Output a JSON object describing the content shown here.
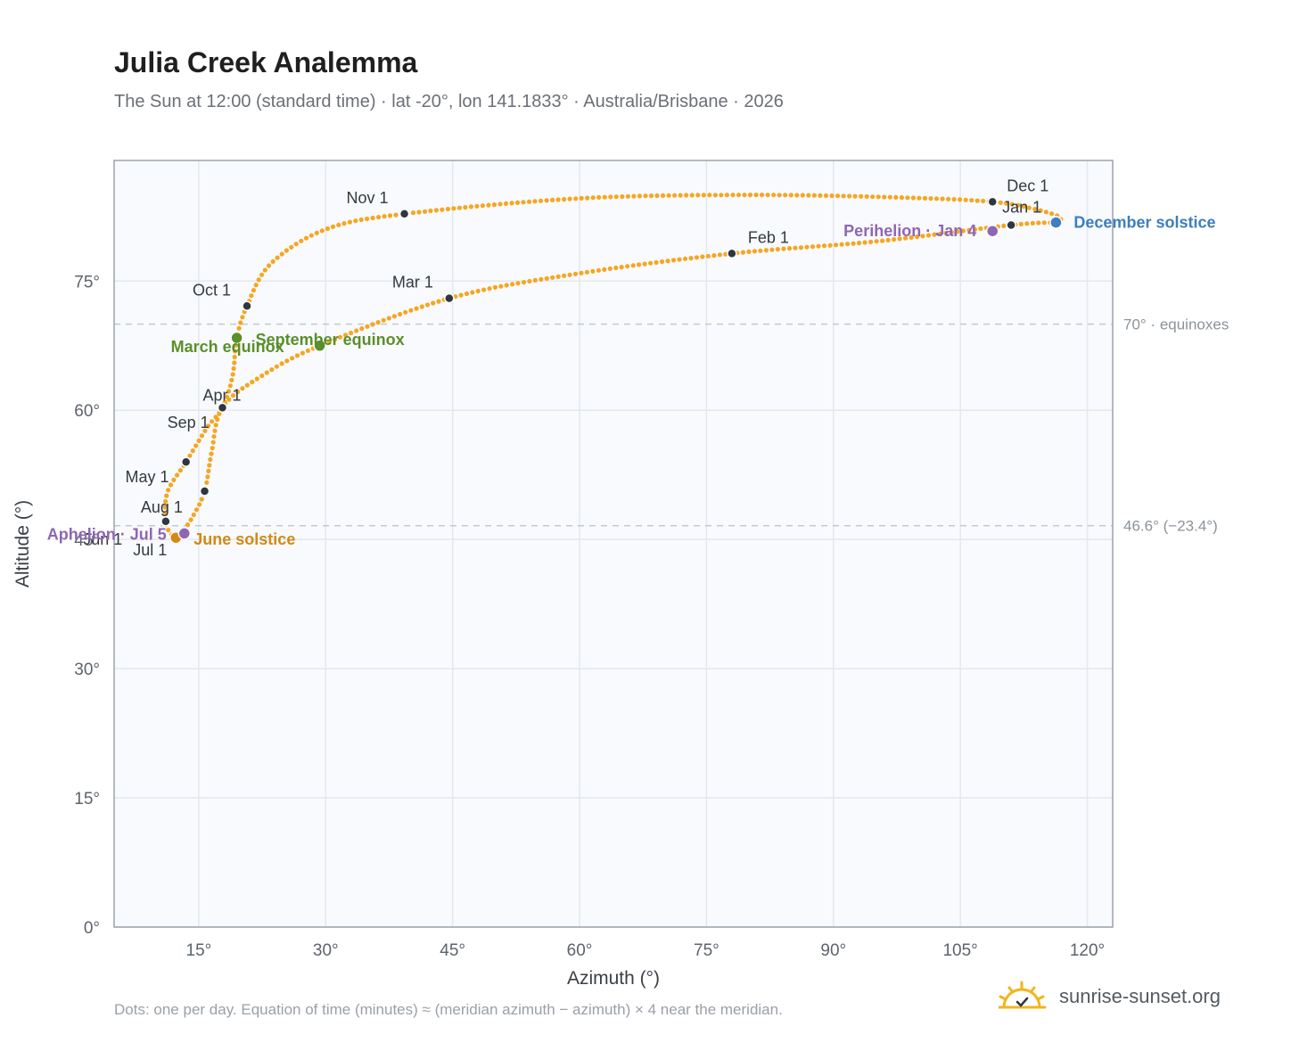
{
  "title": "Julia Creek Analemma",
  "subtitle": "The Sun at 12:00 (standard time) · lat -20°, lon 141.1833° · Australia/Brisbane · 2026",
  "footnote": "Dots: one per day. Equation of time (minutes) ≈ (meridian azimuth − azimuth) × 4 near the meridian.",
  "brand": {
    "name": "sunrise-sunset.org",
    "icon": "sun-logo-icon"
  },
  "colors": {
    "path": "#f5a623",
    "month_marker": "#2f3640",
    "equinox": "#5a8f2a",
    "june_solstice": "#d18a13",
    "december_solstice": "#3d7ebf",
    "apsis": "#8e66b3",
    "reference_line": "#c3c9d1",
    "plot_bg": "#f8fafd"
  },
  "chart_data": {
    "type": "scatter",
    "xlabel": "Azimuth (°)",
    "ylabel": "Altitude (°)",
    "xlim": [
      5,
      123
    ],
    "ylim": [
      0,
      89
    ],
    "xticks": [
      15,
      30,
      45,
      60,
      75,
      90,
      105,
      120
    ],
    "yticks": [
      0,
      15,
      30,
      45,
      60,
      75
    ],
    "tick_labels_x": [
      "15°",
      "30°",
      "45°",
      "60°",
      "75°",
      "90°",
      "105°",
      "120°"
    ],
    "tick_labels_y": [
      "0°",
      "15°",
      "30°",
      "45°",
      "60°",
      "75°"
    ],
    "grid": true,
    "reference_lines": [
      {
        "y": 70,
        "label": "70° · equinoxes"
      },
      {
        "y": 46.6,
        "label": "46.6° (−23.4°)"
      }
    ],
    "months": [
      {
        "label": "Jan 1",
        "x": 111.0,
        "y": 81.5
      },
      {
        "label": "Feb 1",
        "x": 78.0,
        "y": 78.2
      },
      {
        "label": "Mar 1",
        "x": 44.6,
        "y": 73.0
      },
      {
        "label": "Apr 1",
        "x": 17.8,
        "y": 60.3
      },
      {
        "label": "May 1",
        "x": 15.7,
        "y": 50.6
      },
      {
        "label": "Jun 1",
        "x": 12.3,
        "y": 45.2
      },
      {
        "label": "Jul 1",
        "x": 12.3,
        "y": 45.2
      },
      {
        "label": "Aug 1",
        "x": 11.1,
        "y": 47.1
      },
      {
        "label": "Sep 1",
        "x": 13.5,
        "y": 54.0
      },
      {
        "label": "Oct 1",
        "x": 20.7,
        "y": 72.1
      },
      {
        "label": "Nov 1",
        "x": 39.3,
        "y": 82.8
      },
      {
        "label": "Dec 1",
        "x": 108.8,
        "y": 84.2
      }
    ],
    "events": [
      {
        "label": "December solstice",
        "x": 116.3,
        "y": 81.8,
        "color": "#3d7ebf"
      },
      {
        "label": "Perihelion · Jan 4",
        "x": 108.8,
        "y": 80.8,
        "color": "#8e66b3"
      },
      {
        "label": "March equinox",
        "x": 19.5,
        "y": 68.4,
        "color": "#5a8f2a"
      },
      {
        "label": "September equinox",
        "x": 29.3,
        "y": 67.5,
        "color": "#5a8f2a"
      },
      {
        "label": "June solstice",
        "x": 12.3,
        "y": 45.2,
        "color": "#d18a13"
      },
      {
        "label": "Aphelion · Jul 5",
        "x": 13.3,
        "y": 45.7,
        "color": "#8e66b3"
      }
    ],
    "daily_path_anchors": [
      [
        116.3,
        81.8
      ],
      [
        111.0,
        81.5
      ],
      [
        95.0,
        79.6
      ],
      [
        78.0,
        78.2
      ],
      [
        60.0,
        75.9
      ],
      [
        44.6,
        73.0
      ],
      [
        29.3,
        67.5
      ],
      [
        22.3,
        63.9
      ],
      [
        17.8,
        60.3
      ],
      [
        16.5,
        55.0
      ],
      [
        15.7,
        50.6
      ],
      [
        14.2,
        47.5
      ],
      [
        12.8,
        45.6
      ],
      [
        12.3,
        45.2
      ],
      [
        11.6,
        45.8
      ],
      [
        11.1,
        47.1
      ],
      [
        11.3,
        50.5
      ],
      [
        13.5,
        54.0
      ],
      [
        16.0,
        58.0
      ],
      [
        17.8,
        60.3
      ],
      [
        19.0,
        64.0
      ],
      [
        19.5,
        68.4
      ],
      [
        20.7,
        72.1
      ],
      [
        23.5,
        77.0
      ],
      [
        30.0,
        81.0
      ],
      [
        39.3,
        82.8
      ],
      [
        60.0,
        84.6
      ],
      [
        80.0,
        85.0
      ],
      [
        98.0,
        84.7
      ],
      [
        108.8,
        84.2
      ],
      [
        114.0,
        83.3
      ],
      [
        116.8,
        82.4
      ],
      [
        116.3,
        81.8
      ]
    ]
  }
}
